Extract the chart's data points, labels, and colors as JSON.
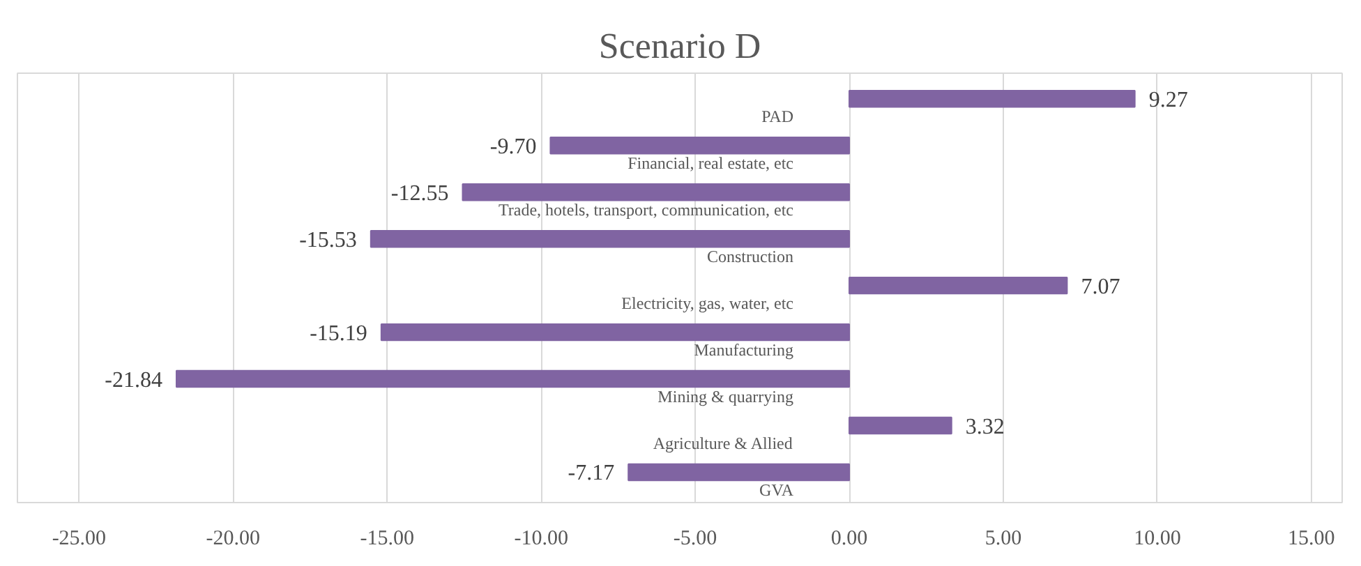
{
  "chart_data": {
    "type": "bar",
    "orientation": "horizontal",
    "title": "Scenario D",
    "categories": [
      "PAD",
      "Financial, real estate, etc",
      "Trade, hotels, transport, communication, etc",
      "Construction",
      "Electricity, gas, water, etc",
      "Manufacturing",
      "Mining & quarrying",
      "Agriculture & Allied",
      "GVA"
    ],
    "values": [
      9.27,
      -9.7,
      -12.55,
      -15.53,
      7.07,
      -15.19,
      -21.84,
      3.32,
      -7.17
    ],
    "value_labels": [
      "9.27",
      "-9.70",
      "-12.55",
      "-15.53",
      "7.07",
      "-15.19",
      "-21.84",
      "3.32",
      "-7.17"
    ],
    "color": "#8064a2",
    "xlim": [
      -27,
      16
    ],
    "xticks": [
      {
        "value": -25,
        "label": "-25.00"
      },
      {
        "value": -20,
        "label": "-20.00"
      },
      {
        "value": -15,
        "label": "-15.00"
      },
      {
        "value": -10,
        "label": "-10.00"
      },
      {
        "value": -5,
        "label": "-5.00"
      },
      {
        "value": 0,
        "label": "0.00"
      },
      {
        "value": 5,
        "label": "5.00"
      },
      {
        "value": 10,
        "label": "10.00"
      },
      {
        "value": 15,
        "label": "15.00"
      }
    ],
    "grid": "x"
  }
}
